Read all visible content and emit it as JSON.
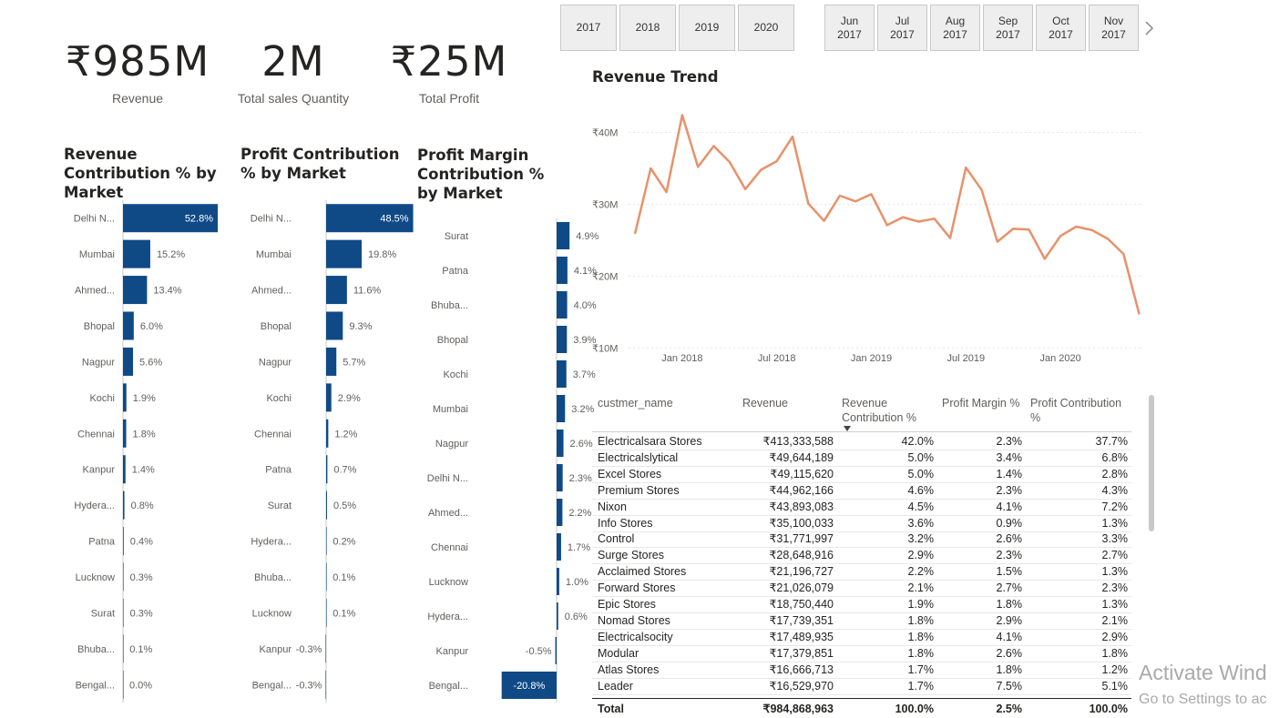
{
  "kpis": [
    {
      "value": "₹985M",
      "label": "Revenue"
    },
    {
      "value": "2M",
      "label": "Total sales Quantity"
    },
    {
      "value": "₹25M",
      "label": "Total Profit"
    }
  ],
  "year_slicer": [
    "2017",
    "2018",
    "2019",
    "2020"
  ],
  "month_slicer": [
    {
      "month": "Jun",
      "year": "2017"
    },
    {
      "month": "Jul",
      "year": "2017"
    },
    {
      "month": "Aug",
      "year": "2017"
    },
    {
      "month": "Sep",
      "year": "2017"
    },
    {
      "month": "Oct",
      "year": "2017"
    },
    {
      "month": "Nov",
      "year": "2017"
    }
  ],
  "colors": {
    "bar": "#0f4a87",
    "line": "#e8916a",
    "grid": "#e6e6e6"
  },
  "chart_data": [
    {
      "type": "bar",
      "title": "Revenue Contribution % by Market",
      "categories": [
        "Delhi N...",
        "Mumbai",
        "Ahmed...",
        "Bhopal",
        "Nagpur",
        "Kochi",
        "Chennai",
        "Kanpur",
        "Hydera...",
        "Patna",
        "Lucknow",
        "Surat",
        "Bhuba...",
        "Bengal..."
      ],
      "values": [
        52.8,
        15.2,
        13.4,
        6.0,
        5.6,
        1.9,
        1.8,
        1.4,
        0.8,
        0.4,
        0.3,
        0.3,
        0.1,
        0.0
      ],
      "labels": [
        "52.8%",
        "15.2%",
        "13.4%",
        "6.0%",
        "5.6%",
        "1.9%",
        "1.8%",
        "1.4%",
        "0.8%",
        "0.4%",
        "0.3%",
        "0.3%",
        "0.1%",
        "0.0%"
      ]
    },
    {
      "type": "bar",
      "title": "Profit Contribution % by Market",
      "categories": [
        "Delhi N...",
        "Mumbai",
        "Ahmed...",
        "Bhopal",
        "Nagpur",
        "Kochi",
        "Chennai",
        "Patna",
        "Surat",
        "Hydera...",
        "Bhuba...",
        "Lucknow",
        "Kanpur",
        "Bengal..."
      ],
      "values": [
        48.5,
        19.8,
        11.6,
        9.3,
        5.7,
        2.9,
        1.2,
        0.7,
        0.5,
        0.2,
        0.1,
        0.1,
        -0.3,
        -0.3
      ],
      "labels": [
        "48.5%",
        "19.8%",
        "11.6%",
        "9.3%",
        "5.7%",
        "2.9%",
        "1.2%",
        "0.7%",
        "0.5%",
        "0.2%",
        "0.1%",
        "0.1%",
        "-0.3%",
        "-0.3%"
      ]
    },
    {
      "type": "bar",
      "title": "Profit Margin Contribution % by Market",
      "categories": [
        "Surat",
        "Patna",
        "Bhuba...",
        "Bhopal",
        "Kochi",
        "Mumbai",
        "Nagpur",
        "Delhi N...",
        "Ahmed...",
        "Chennai",
        "Lucknow",
        "Hydera...",
        "Kanpur",
        "Bengal..."
      ],
      "values": [
        4.9,
        4.1,
        4.0,
        3.9,
        3.7,
        3.2,
        2.6,
        2.3,
        2.2,
        1.7,
        1.0,
        0.6,
        -0.5,
        -20.8
      ],
      "labels": [
        "4.9%",
        "4.1%",
        "4.0%",
        "3.9%",
        "3.7%",
        "3.2%",
        "2.6%",
        "2.3%",
        "2.2%",
        "1.7%",
        "1.0%",
        "0.6%",
        "-0.5%",
        "-20.8%"
      ]
    },
    {
      "type": "line",
      "title": "Revenue Trend",
      "x_ticks": [
        "Jan 2018",
        "Jul 2018",
        "Jan 2019",
        "Jul 2019",
        "Jan 2020"
      ],
      "y_ticks": [
        "₹10M",
        "₹20M",
        "₹30M",
        "₹40M"
      ],
      "x": [
        "2017-10",
        "2017-11",
        "2017-12",
        "2018-01",
        "2018-02",
        "2018-03",
        "2018-04",
        "2018-05",
        "2018-06",
        "2018-07",
        "2018-08",
        "2018-09",
        "2018-10",
        "2018-11",
        "2018-12",
        "2019-01",
        "2019-02",
        "2019-03",
        "2019-04",
        "2019-05",
        "2019-06",
        "2019-07",
        "2019-08",
        "2019-09",
        "2019-10",
        "2019-11",
        "2019-12",
        "2020-01",
        "2020-02",
        "2020-03",
        "2020-04",
        "2020-05",
        "2020-06"
      ],
      "values": [
        25.9,
        35.0,
        31.7,
        42.4,
        35.2,
        38.1,
        35.9,
        32.1,
        34.8,
        36.0,
        39.4,
        30.1,
        27.7,
        31.2,
        30.4,
        31.4,
        27.1,
        28.2,
        27.6,
        28.0,
        25.3,
        35.1,
        32.0,
        24.8,
        26.6,
        26.5,
        22.4,
        25.6,
        26.9,
        26.4,
        25.2,
        23.1,
        14.7
      ],
      "ylim": [
        10,
        42.4
      ],
      "grid": true
    }
  ],
  "table": {
    "columns": [
      "custmer_name",
      "Revenue",
      "Revenue Contribution %",
      "Profit Margin %",
      "Profit Contribution %"
    ],
    "rows": [
      [
        "Electricalsara Stores",
        "₹413,333,588",
        "42.0%",
        "2.3%",
        "37.7%"
      ],
      [
        "Electricalslytical",
        "₹49,644,189",
        "5.0%",
        "3.4%",
        "6.8%"
      ],
      [
        "Excel Stores",
        "₹49,115,620",
        "5.0%",
        "1.4%",
        "2.8%"
      ],
      [
        "Premium Stores",
        "₹44,962,166",
        "4.6%",
        "2.3%",
        "4.3%"
      ],
      [
        "Nixon",
        "₹43,893,083",
        "4.5%",
        "4.1%",
        "7.2%"
      ],
      [
        "Info Stores",
        "₹35,100,033",
        "3.6%",
        "0.9%",
        "1.3%"
      ],
      [
        "Control",
        "₹31,771,997",
        "3.2%",
        "2.6%",
        "3.3%"
      ],
      [
        "Surge Stores",
        "₹28,648,916",
        "2.9%",
        "2.3%",
        "2.7%"
      ],
      [
        "Acclaimed Stores",
        "₹21,196,727",
        "2.2%",
        "1.5%",
        "1.3%"
      ],
      [
        "Forward Stores",
        "₹21,026,079",
        "2.1%",
        "2.7%",
        "2.3%"
      ],
      [
        "Epic Stores",
        "₹18,750,440",
        "1.9%",
        "1.8%",
        "1.3%"
      ],
      [
        "Nomad Stores",
        "₹17,739,351",
        "1.8%",
        "2.9%",
        "2.1%"
      ],
      [
        "Electricalsocity",
        "₹17,489,935",
        "1.8%",
        "4.1%",
        "2.9%"
      ],
      [
        "Modular",
        "₹17,379,851",
        "1.8%",
        "2.6%",
        "1.8%"
      ],
      [
        "Atlas Stores",
        "₹16,666,713",
        "1.7%",
        "1.8%",
        "1.2%"
      ],
      [
        "Leader",
        "₹16,529,970",
        "1.7%",
        "7.5%",
        "5.1%"
      ]
    ],
    "total": [
      "Total",
      "₹984,868,963",
      "100.0%",
      "2.5%",
      "100.0%"
    ]
  },
  "watermark": {
    "line1": "Activate Wind",
    "line2": "Go to Settings to ac"
  }
}
